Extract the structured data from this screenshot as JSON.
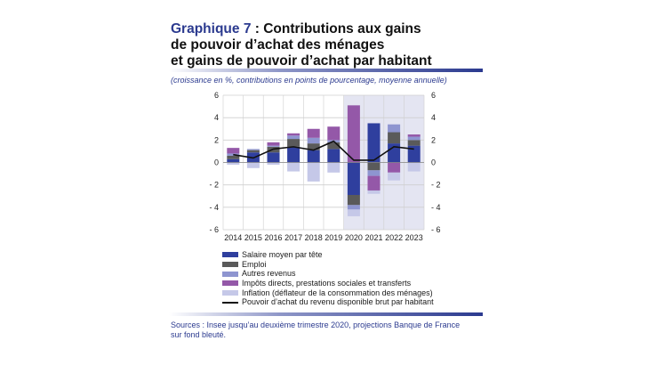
{
  "title": {
    "prefix": "Graphique 7",
    "line1": " : Contributions aux gains",
    "line2": "de pouvoir d’achat des ménages",
    "line3": "et gains de pouvoir d’achat par habitant"
  },
  "subtitle": "(croissance en %, contributions en points de pourcentage, moyenne annuelle)",
  "sources": {
    "line1": "Sources : Insee jusqu’au deuxième trimestre 2020, projections Banque de France",
    "line2": "sur fond bleuté."
  },
  "colors": {
    "accent": "#2b3a8f",
    "projection_band": "#e4e5f2",
    "grid": "#cfcfcf"
  },
  "chart_data": {
    "type": "bar",
    "stacked": true,
    "categories": [
      "2014",
      "2015",
      "2016",
      "2017",
      "2018",
      "2019",
      "2020",
      "2021",
      "2022",
      "2023"
    ],
    "ylim": [
      -6,
      6
    ],
    "yticks": [
      -6,
      -4,
      -2,
      0,
      2,
      4,
      6
    ],
    "ytick_labels": [
      "- 6",
      "- 4",
      "- 2",
      "0",
      "2",
      "4",
      "6"
    ],
    "secondary_ytick_labels": [
      "- 6",
      "- 4",
      "- 2",
      "0",
      "2",
      "4",
      "6"
    ],
    "grid": true,
    "projection_shading_from": "2020",
    "legend_position": "bottom",
    "series": [
      {
        "name": "Salaire moyen par tête",
        "color": "#2f3f9e",
        "kind": "bar",
        "values": [
          0.3,
          0.9,
          0.9,
          1.4,
          1.1,
          1.2,
          -2.9,
          3.5,
          1.7,
          1.5
        ]
      },
      {
        "name": "Emploi",
        "color": "#5a5a5a",
        "kind": "bar",
        "values": [
          0.3,
          0.2,
          0.5,
          0.7,
          0.6,
          0.6,
          -0.9,
          -0.7,
          1.0,
          0.5
        ]
      },
      {
        "name": "Autres revenus",
        "color": "#8e95d0",
        "kind": "bar",
        "values": [
          0.2,
          0.1,
          0.1,
          0.3,
          0.5,
          0.2,
          -0.4,
          -0.5,
          0.7,
          0.3
        ]
      },
      {
        "name": "Impôts directs, prestations sociales et transferts",
        "color": "#9458a8",
        "kind": "bar",
        "values": [
          0.5,
          0.0,
          0.3,
          0.2,
          0.8,
          1.2,
          5.1,
          -1.3,
          -0.9,
          0.2
        ]
      },
      {
        "name": "Inflation (déflateur de la consommation des ménages)",
        "color": "#c5c8e8",
        "kind": "bar",
        "values": [
          -0.2,
          -0.5,
          -0.2,
          -0.8,
          -1.7,
          -0.9,
          -0.6,
          -0.3,
          -0.7,
          -0.8
        ]
      },
      {
        "name": "Pouvoir d’achat du revenu disponible brut par habitant",
        "color": "#111111",
        "kind": "line",
        "values": [
          0.7,
          0.4,
          1.2,
          1.4,
          1.1,
          1.9,
          0.2,
          0.2,
          1.4,
          1.2
        ]
      }
    ]
  }
}
